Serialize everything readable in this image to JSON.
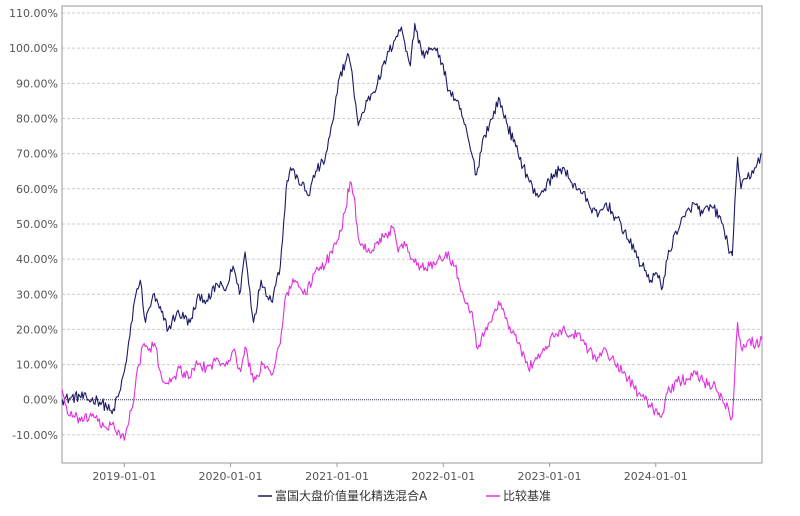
{
  "chart_data": {
    "type": "line",
    "title": "",
    "xlabel": "",
    "ylabel": "",
    "x_ticks": [
      "2019-01-01",
      "2020-01-01",
      "2021-01-01",
      "2022-01-01",
      "2023-01-01",
      "2024-01-01"
    ],
    "y_ticks": [
      "-10.00%",
      "0.00%",
      "10.00%",
      "20.00%",
      "30.00%",
      "40.00%",
      "50.00%",
      "60.00%",
      "70.00%",
      "80.00%",
      "90.00%",
      "100.00%",
      "110.00%"
    ],
    "ylim": [
      -18,
      112
    ],
    "xlim": [
      "2018-06-01",
      "2024-12-31"
    ],
    "grid": true,
    "legend_position": "bottom",
    "series": [
      {
        "name": "富国大盘价值量化精选混合A",
        "color": "#1a1a66",
        "points": [
          [
            "2018-06-01",
            0
          ],
          [
            "2018-07-01",
            0.5
          ],
          [
            "2018-08-01",
            1
          ],
          [
            "2018-09-01",
            0
          ],
          [
            "2018-10-01",
            0
          ],
          [
            "2018-11-01",
            -2
          ],
          [
            "2018-11-20",
            -4
          ],
          [
            "2018-12-15",
            2
          ],
          [
            "2019-01-01",
            8
          ],
          [
            "2019-01-20",
            18
          ],
          [
            "2019-02-10",
            30
          ],
          [
            "2019-02-25",
            34
          ],
          [
            "2019-03-15",
            22
          ],
          [
            "2019-04-10",
            30
          ],
          [
            "2019-05-01",
            26
          ],
          [
            "2019-06-01",
            20
          ],
          [
            "2019-07-01",
            25
          ],
          [
            "2019-08-15",
            22
          ],
          [
            "2019-09-15",
            30
          ],
          [
            "2019-10-15",
            28
          ],
          [
            "2019-11-15",
            33
          ],
          [
            "2019-12-15",
            31
          ],
          [
            "2020-01-10",
            38
          ],
          [
            "2020-02-01",
            30
          ],
          [
            "2020-02-20",
            42
          ],
          [
            "2020-03-20",
            22
          ],
          [
            "2020-04-15",
            34
          ],
          [
            "2020-05-20",
            28
          ],
          [
            "2020-06-20",
            38
          ],
          [
            "2020-07-10",
            60
          ],
          [
            "2020-07-25",
            66
          ],
          [
            "2020-08-20",
            63
          ],
          [
            "2020-09-25",
            58
          ],
          [
            "2020-10-20",
            65
          ],
          [
            "2020-11-20",
            68
          ],
          [
            "2020-12-20",
            80
          ],
          [
            "2021-01-10",
            92
          ],
          [
            "2021-02-10",
            98
          ],
          [
            "2021-02-25",
            90
          ],
          [
            "2021-03-15",
            78
          ],
          [
            "2021-04-15",
            85
          ],
          [
            "2021-05-20",
            90
          ],
          [
            "2021-06-20",
            97
          ],
          [
            "2021-07-15",
            102
          ],
          [
            "2021-08-10",
            106
          ],
          [
            "2021-09-10",
            95
          ],
          [
            "2021-09-25",
            107
          ],
          [
            "2021-10-20",
            98
          ],
          [
            "2021-11-20",
            100
          ],
          [
            "2021-12-20",
            98
          ],
          [
            "2022-01-20",
            88
          ],
          [
            "2022-02-15",
            85
          ],
          [
            "2022-03-10",
            80
          ],
          [
            "2022-04-25",
            64
          ],
          [
            "2022-05-20",
            75
          ],
          [
            "2022-06-20",
            80
          ],
          [
            "2022-07-10",
            86
          ],
          [
            "2022-08-10",
            78
          ],
          [
            "2022-09-15",
            70
          ],
          [
            "2022-10-20",
            63
          ],
          [
            "2022-11-15",
            58
          ],
          [
            "2022-12-15",
            60
          ],
          [
            "2023-01-15",
            64
          ],
          [
            "2023-02-15",
            66
          ],
          [
            "2023-03-15",
            62
          ],
          [
            "2023-04-15",
            60
          ],
          [
            "2023-05-15",
            56
          ],
          [
            "2023-06-15",
            52
          ],
          [
            "2023-07-15",
            56
          ],
          [
            "2023-08-15",
            52
          ],
          [
            "2023-09-15",
            48
          ],
          [
            "2023-10-20",
            42
          ],
          [
            "2023-11-15",
            38
          ],
          [
            "2023-12-15",
            34
          ],
          [
            "2024-01-05",
            36
          ],
          [
            "2024-01-25",
            32
          ],
          [
            "2024-02-10",
            40
          ],
          [
            "2024-03-10",
            48
          ],
          [
            "2024-04-10",
            52
          ],
          [
            "2024-05-10",
            56
          ],
          [
            "2024-06-10",
            53
          ],
          [
            "2024-07-10",
            55
          ],
          [
            "2024-08-10",
            52
          ],
          [
            "2024-09-05",
            44
          ],
          [
            "2024-09-20",
            41
          ],
          [
            "2024-10-08",
            69
          ],
          [
            "2024-10-20",
            60
          ],
          [
            "2024-11-10",
            63
          ],
          [
            "2024-12-10",
            66
          ],
          [
            "2024-12-31",
            70
          ]
        ]
      },
      {
        "name": "比较基准",
        "color": "#e030e0",
        "points": [
          [
            "2018-06-01",
            3
          ],
          [
            "2018-06-20",
            -4
          ],
          [
            "2018-07-15",
            -5
          ],
          [
            "2018-08-15",
            -6
          ],
          [
            "2018-09-15",
            -4
          ],
          [
            "2018-10-15",
            -8
          ],
          [
            "2018-11-20",
            -7
          ],
          [
            "2018-12-20",
            -11
          ],
          [
            "2019-01-05",
            -10
          ],
          [
            "2019-01-25",
            -3
          ],
          [
            "2019-02-20",
            10
          ],
          [
            "2019-03-10",
            16
          ],
          [
            "2019-03-25",
            14
          ],
          [
            "2019-04-15",
            16
          ],
          [
            "2019-05-10",
            6
          ],
          [
            "2019-06-10",
            5
          ],
          [
            "2019-07-10",
            9
          ],
          [
            "2019-08-10",
            6
          ],
          [
            "2019-09-10",
            10
          ],
          [
            "2019-10-10",
            9
          ],
          [
            "2019-11-10",
            11
          ],
          [
            "2019-12-10",
            10
          ],
          [
            "2020-01-10",
            14
          ],
          [
            "2020-02-05",
            8
          ],
          [
            "2020-02-20",
            15
          ],
          [
            "2020-03-20",
            5
          ],
          [
            "2020-04-20",
            10
          ],
          [
            "2020-05-20",
            7
          ],
          [
            "2020-06-20",
            16
          ],
          [
            "2020-07-10",
            30
          ],
          [
            "2020-08-10",
            34
          ],
          [
            "2020-09-15",
            30
          ],
          [
            "2020-10-15",
            36
          ],
          [
            "2020-11-20",
            38
          ],
          [
            "2020-12-20",
            44
          ],
          [
            "2021-01-15",
            48
          ],
          [
            "2021-02-15",
            62
          ],
          [
            "2021-02-28",
            58
          ],
          [
            "2021-03-15",
            46
          ],
          [
            "2021-04-15",
            42
          ],
          [
            "2021-05-20",
            45
          ],
          [
            "2021-06-20",
            47
          ],
          [
            "2021-07-10",
            49
          ],
          [
            "2021-07-30",
            42
          ],
          [
            "2021-08-20",
            45
          ],
          [
            "2021-09-15",
            40
          ],
          [
            "2021-10-15",
            38
          ],
          [
            "2021-11-15",
            38
          ],
          [
            "2021-12-15",
            40
          ],
          [
            "2022-01-10",
            42
          ],
          [
            "2022-02-10",
            38
          ],
          [
            "2022-03-10",
            30
          ],
          [
            "2022-04-10",
            25
          ],
          [
            "2022-04-25",
            15
          ],
          [
            "2022-05-20",
            18
          ],
          [
            "2022-06-20",
            24
          ],
          [
            "2022-07-10",
            28
          ],
          [
            "2022-08-10",
            22
          ],
          [
            "2022-09-15",
            16
          ],
          [
            "2022-10-20",
            9
          ],
          [
            "2022-11-15",
            12
          ],
          [
            "2022-12-15",
            14
          ],
          [
            "2023-01-15",
            18
          ],
          [
            "2023-02-15",
            20
          ],
          [
            "2023-03-15",
            18
          ],
          [
            "2023-04-15",
            19
          ],
          [
            "2023-05-15",
            14
          ],
          [
            "2023-06-15",
            12
          ],
          [
            "2023-07-15",
            14
          ],
          [
            "2023-08-15",
            10
          ],
          [
            "2023-09-15",
            8
          ],
          [
            "2023-10-20",
            3
          ],
          [
            "2023-11-15",
            1
          ],
          [
            "2023-12-15",
            -2
          ],
          [
            "2024-01-20",
            -5
          ],
          [
            "2024-02-10",
            2
          ],
          [
            "2024-03-15",
            5
          ],
          [
            "2024-04-15",
            6
          ],
          [
            "2024-05-15",
            8
          ],
          [
            "2024-06-15",
            5
          ],
          [
            "2024-07-15",
            4
          ],
          [
            "2024-08-15",
            1
          ],
          [
            "2024-09-10",
            -4
          ],
          [
            "2024-09-20",
            -5
          ],
          [
            "2024-10-08",
            22
          ],
          [
            "2024-10-20",
            15
          ],
          [
            "2024-11-15",
            17
          ],
          [
            "2024-12-10",
            16
          ],
          [
            "2024-12-31",
            17
          ]
        ]
      }
    ]
  }
}
